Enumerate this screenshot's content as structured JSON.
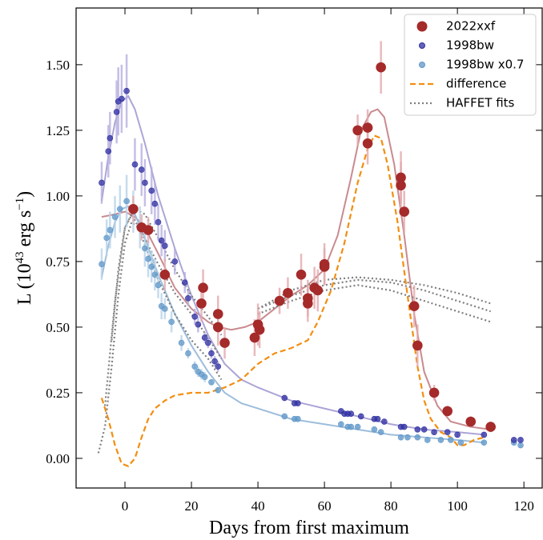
{
  "chart_data": {
    "type": "scatter",
    "xlabel": "Days from first maximum",
    "ylabel": [
      "L (10",
      "43",
      " erg s",
      "−1",
      ")"
    ],
    "xlim": [
      -14.7,
      125.5
    ],
    "ylim": [
      -0.113,
      1.716
    ],
    "xticks": [
      0,
      20,
      40,
      60,
      80,
      100,
      120
    ],
    "yticks": [
      {
        "value": 0,
        "label": "0.00"
      },
      0.25,
      {
        "value": 0.5,
        "label": "0.50"
      },
      0.75,
      {
        "value": 1,
        "label": "1.00"
      },
      1.25,
      {
        "value": 1.5,
        "label": "1.50"
      }
    ],
    "legend": "upper right",
    "series": [
      {
        "name": "2022xxf",
        "kind": "points",
        "color": "#a52a2a",
        "errcolor": "#e4a9ad",
        "size": 6,
        "x": [
          2.5,
          5,
          7,
          12,
          23,
          23.5,
          28,
          28,
          30,
          39,
          40,
          40.5,
          46.5,
          49,
          53,
          55,
          55,
          57,
          58,
          60,
          60,
          70,
          73,
          73,
          77,
          83,
          83,
          84,
          87,
          88,
          93,
          97,
          104,
          110
        ],
        "values": [
          0.95,
          0.88,
          0.87,
          0.7,
          0.59,
          0.65,
          0.55,
          0.5,
          0.44,
          0.46,
          0.51,
          0.49,
          0.6,
          0.63,
          0.7,
          0.61,
          0.59,
          0.65,
          0.64,
          0.73,
          0.74,
          1.25,
          1.2,
          1.26,
          1.49,
          1.07,
          1.04,
          0.94,
          0.58,
          0.43,
          0.25,
          0.18,
          0.14,
          0.12
        ],
        "errors": [
          0.05,
          0.05,
          0.05,
          0.06,
          0.07,
          0.07,
          0.07,
          0.07,
          0.06,
          0.07,
          0.08,
          0.07,
          0.05,
          0.06,
          0.08,
          0.07,
          0.07,
          0.08,
          0.08,
          0.07,
          0.08,
          0.06,
          0.08,
          0.07,
          0.1,
          0.1,
          0.09,
          0.08,
          0.08,
          0.08,
          0.03,
          0.02,
          0.02,
          0.02
        ]
      },
      {
        "name": "1998bw",
        "kind": "points",
        "color": "#2f2fa2",
        "errcolor": "#b7b0e0",
        "size": 3.5,
        "x": [
          -7,
          -5,
          -4.5,
          -2.5,
          -2,
          -1,
          0.5,
          3,
          5,
          6,
          8,
          9,
          10,
          11,
          12,
          15,
          18,
          19,
          21,
          22,
          24,
          25,
          26,
          27,
          28,
          48,
          51,
          52,
          65,
          66,
          67,
          68,
          71,
          75,
          76,
          78,
          83,
          84,
          88,
          90,
          93,
          97,
          100,
          108,
          117,
          119
        ],
        "values": [
          1.05,
          1.17,
          1.22,
          1.32,
          1.36,
          1.37,
          1.4,
          1.12,
          1.1,
          1.05,
          1.02,
          0.97,
          0.9,
          0.83,
          0.81,
          0.75,
          0.67,
          0.61,
          0.54,
          0.51,
          0.46,
          0.44,
          0.4,
          0.37,
          0.35,
          0.23,
          0.21,
          0.21,
          0.18,
          0.17,
          0.17,
          0.17,
          0.16,
          0.15,
          0.15,
          0.14,
          0.12,
          0.12,
          0.11,
          0.11,
          0.1,
          0.1,
          0.09,
          0.09,
          0.07,
          0.07
        ],
        "errors": [
          0.08,
          0.1,
          0.1,
          0.12,
          0.13,
          0.13,
          0.14,
          0.1,
          0.1,
          0.09,
          0.09,
          0.08,
          0.07,
          0.06,
          0.06,
          0.05,
          0.04,
          0.03,
          0.03,
          0.03,
          0.02,
          0.02,
          0.02,
          0.02,
          0.02,
          0.01,
          0.01,
          0.01,
          0.01,
          0.01,
          0.01,
          0.01,
          0.01,
          0.01,
          0.01,
          0.01,
          0.01,
          0.01,
          0.01,
          0.01,
          0.01,
          0.01,
          0.01,
          0.01,
          0.01,
          0.01
        ]
      },
      {
        "name": "1998bw x0.7",
        "kind": "points",
        "color": "#5f97c8",
        "errcolor": "#b8d3ea",
        "size": 3.5,
        "x": [
          -7,
          -5.5,
          -4.5,
          -3,
          -1.5,
          0.5,
          2.5,
          4.5,
          6,
          7,
          8,
          9,
          10,
          11,
          12,
          14,
          17,
          19,
          21,
          22,
          23,
          24,
          26,
          28,
          48,
          51,
          52,
          65,
          67,
          68,
          70,
          75,
          77,
          83,
          85,
          88,
          91,
          95,
          98,
          101,
          108,
          117,
          119
        ],
        "values": [
          0.74,
          0.84,
          0.87,
          0.92,
          0.95,
          0.98,
          0.94,
          0.88,
          0.8,
          0.76,
          0.73,
          0.7,
          0.66,
          0.58,
          0.57,
          0.52,
          0.44,
          0.4,
          0.35,
          0.33,
          0.32,
          0.31,
          0.29,
          0.26,
          0.16,
          0.15,
          0.15,
          0.13,
          0.12,
          0.12,
          0.12,
          0.11,
          0.1,
          0.08,
          0.08,
          0.08,
          0.07,
          0.07,
          0.07,
          0.06,
          0.06,
          0.06,
          0.05
        ],
        "errors": [
          0.06,
          0.07,
          0.07,
          0.08,
          0.09,
          0.1,
          0.08,
          0.08,
          0.07,
          0.07,
          0.06,
          0.06,
          0.05,
          0.05,
          0.04,
          0.04,
          0.03,
          0.02,
          0.02,
          0.02,
          0.02,
          0.02,
          0.01,
          0.01,
          0.01,
          0.01,
          0.01,
          0.01,
          0.01,
          0.01,
          0.01,
          0.01,
          0.01,
          0.01,
          0.01,
          0.01,
          0.01,
          0.01,
          0.01,
          0.01,
          0.01,
          0.01,
          0.01
        ]
      },
      {
        "name": "difference",
        "kind": "line",
        "color": "#f28e10",
        "dash": "7 4",
        "x": [
          -7,
          -5,
          -3,
          -1,
          1,
          3,
          5,
          7,
          9,
          12,
          15,
          20,
          25,
          30,
          35,
          40,
          45,
          50,
          55,
          58,
          62,
          66,
          70,
          73,
          75,
          77,
          79,
          82,
          85,
          88,
          90,
          92,
          95,
          98,
          100,
          102,
          105,
          108
        ],
        "values": [
          0.23,
          0.15,
          0.05,
          -0.02,
          -0.03,
          0.0,
          0.08,
          0.15,
          0.19,
          0.22,
          0.24,
          0.25,
          0.25,
          0.27,
          0.3,
          0.36,
          0.4,
          0.42,
          0.45,
          0.52,
          0.64,
          0.82,
          1.05,
          1.18,
          1.23,
          1.22,
          1.12,
          0.9,
          0.62,
          0.35,
          0.22,
          0.15,
          0.1,
          0.08,
          0.05,
          0.05,
          0.07,
          0.08
        ]
      },
      {
        "name": "HAFFET fits",
        "kind": "curves",
        "color": "#7f7f7f",
        "dash": "2 3",
        "curves": [
          {
            "x": [
              -8,
              -6,
              -4,
              -2,
              0,
              2,
              4,
              7,
              10,
              15,
              20,
              25,
              29
            ],
            "values": [
              0.02,
              0.12,
              0.35,
              0.62,
              0.82,
              0.9,
              0.88,
              0.78,
              0.68,
              0.55,
              0.45,
              0.38,
              0.3
            ]
          },
          {
            "x": [
              -6,
              -3,
              0,
              2,
              5,
              10,
              15,
              20,
              25,
              29
            ],
            "values": [
              0.2,
              0.6,
              0.88,
              0.93,
              0.86,
              0.74,
              0.63,
              0.55,
              0.46,
              0.38
            ]
          },
          {
            "x": [
              -4,
              -2,
              0,
              3,
              6,
              10,
              15,
              20,
              25,
              29
            ],
            "values": [
              0.45,
              0.72,
              0.88,
              0.95,
              0.93,
              0.84,
              0.72,
              0.62,
              0.54,
              0.47
            ]
          },
          {
            "x": [
              40,
              50,
              60,
              70,
              80,
              90,
              100,
              110
            ],
            "values": [
              0.57,
              0.62,
              0.66,
              0.68,
              0.67,
              0.64,
              0.6,
              0.56
            ]
          },
          {
            "x": [
              40,
              50,
              60,
              70,
              80,
              90,
              100,
              110
            ],
            "values": [
              0.57,
              0.64,
              0.68,
              0.69,
              0.68,
              0.66,
              0.63,
              0.59
            ]
          },
          {
            "x": [
              40,
              50,
              60,
              70,
              80,
              90,
              100,
              110
            ],
            "values": [
              0.55,
              0.6,
              0.64,
              0.66,
              0.64,
              0.6,
              0.56,
              0.52
            ]
          }
        ]
      }
    ],
    "fit_curves": [
      {
        "color": "#c98a8f",
        "x": [
          -7,
          -3,
          0,
          3,
          6,
          10,
          15,
          20,
          25,
          28,
          32,
          36,
          40,
          45,
          50,
          55,
          60,
          64,
          68,
          71,
          74,
          76,
          78,
          81,
          84,
          87,
          90,
          94,
          98,
          104,
          110
        ],
        "values": [
          0.92,
          0.93,
          0.94,
          0.92,
          0.88,
          0.78,
          0.65,
          0.57,
          0.52,
          0.5,
          0.49,
          0.5,
          0.52,
          0.57,
          0.62,
          0.66,
          0.72,
          0.85,
          1.07,
          1.25,
          1.32,
          1.33,
          1.3,
          1.12,
          0.85,
          0.55,
          0.33,
          0.2,
          0.14,
          0.12,
          0.11
        ]
      },
      {
        "color": "#aba5d6",
        "x": [
          -7,
          -5,
          -3,
          -1,
          1,
          3,
          6,
          10,
          15,
          20,
          25,
          30,
          35,
          40,
          50,
          60,
          70,
          80,
          90,
          100,
          108
        ],
        "values": [
          0.98,
          1.15,
          1.28,
          1.36,
          1.38,
          1.33,
          1.2,
          1.0,
          0.8,
          0.62,
          0.47,
          0.36,
          0.3,
          0.27,
          0.22,
          0.19,
          0.16,
          0.13,
          0.11,
          0.1,
          0.09
        ]
      },
      {
        "color": "#9dbddb",
        "x": [
          -7,
          -5,
          -3,
          -1,
          1,
          3,
          6,
          10,
          15,
          20,
          25,
          30,
          35,
          40,
          50,
          60,
          70,
          80,
          90,
          100,
          108
        ],
        "values": [
          0.69,
          0.81,
          0.9,
          0.95,
          0.96,
          0.93,
          0.84,
          0.7,
          0.55,
          0.43,
          0.33,
          0.25,
          0.21,
          0.19,
          0.15,
          0.13,
          0.11,
          0.09,
          0.08,
          0.07,
          0.06
        ]
      }
    ]
  }
}
